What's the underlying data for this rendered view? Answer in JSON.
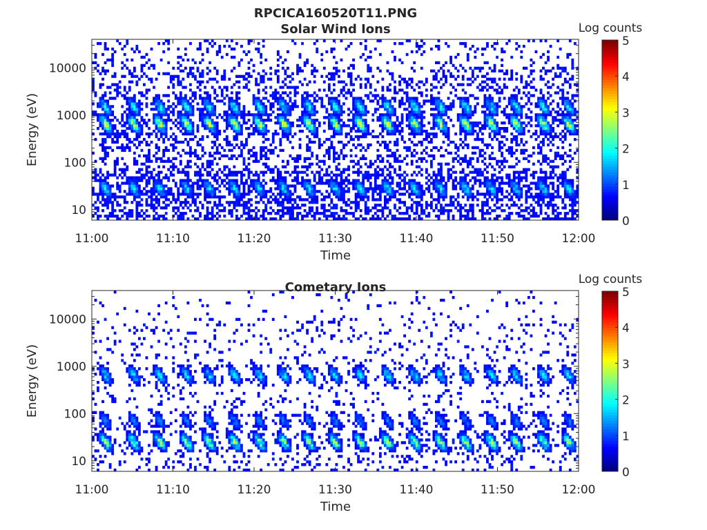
{
  "figure_title": "RPCICA160520T11.PNG",
  "chart_data": [
    {
      "type": "heatmap",
      "title": "Solar Wind Ions",
      "xlabel": "Time",
      "ylabel": "Energy (eV)",
      "x_ticks": [
        "11:00",
        "11:10",
        "11:20",
        "11:30",
        "11:40",
        "11:50",
        "12:00"
      ],
      "xlim_minutes": [
        0,
        60
      ],
      "y_scale": "log",
      "y_ticks": [
        "10",
        "100",
        "1000",
        "10000"
      ],
      "ylim": [
        6,
        40000
      ],
      "colorbar": {
        "label": "Log counts",
        "ticks": [
          "0",
          "1",
          "2",
          "3",
          "4",
          "5"
        ],
        "range": [
          0,
          5
        ],
        "colormap": "jet"
      },
      "burst_minutes": [
        1.7,
        5.2,
        8.4,
        11.7,
        14.5,
        17.6,
        20.7,
        23.7,
        26.8,
        30.0,
        33.1,
        36.5,
        39.8,
        43.0,
        46.1,
        49.3,
        52.3,
        55.7,
        58.8
      ],
      "features": [
        {
          "energy_eV": 650,
          "peak_log_counts": 3.0
        },
        {
          "energy_eV": 1500,
          "peak_log_counts": 1.8
        },
        {
          "energy_eV": 28,
          "peak_log_counts": 1.6
        }
      ],
      "background_log_counts": 0.3
    },
    {
      "type": "heatmap",
      "title": "Cometary Ions",
      "xlabel": "Time",
      "ylabel": "Energy (eV)",
      "x_ticks": [
        "11:00",
        "11:10",
        "11:20",
        "11:30",
        "11:40",
        "11:50",
        "12:00"
      ],
      "xlim_minutes": [
        0,
        60
      ],
      "y_scale": "log",
      "y_ticks": [
        "10",
        "100",
        "1000",
        "10000"
      ],
      "ylim": [
        6,
        40000
      ],
      "colorbar": {
        "label": "Log counts",
        "ticks": [
          "0",
          "1",
          "2",
          "3",
          "4",
          "5"
        ],
        "range": [
          0,
          5
        ],
        "colormap": "jet"
      },
      "burst_minutes": [
        1.7,
        5.2,
        8.4,
        11.7,
        14.5,
        17.6,
        20.7,
        23.7,
        26.8,
        30.0,
        33.1,
        36.5,
        39.8,
        43.0,
        46.1,
        49.3,
        52.3,
        55.7,
        58.8
      ],
      "features": [
        {
          "energy_eV": 650,
          "peak_log_counts": 1.6
        },
        {
          "energy_eV": 25,
          "peak_log_counts": 2.7
        },
        {
          "energy_eV": 70,
          "peak_log_counts": 0.9
        }
      ],
      "background_log_counts": 0.1
    }
  ]
}
